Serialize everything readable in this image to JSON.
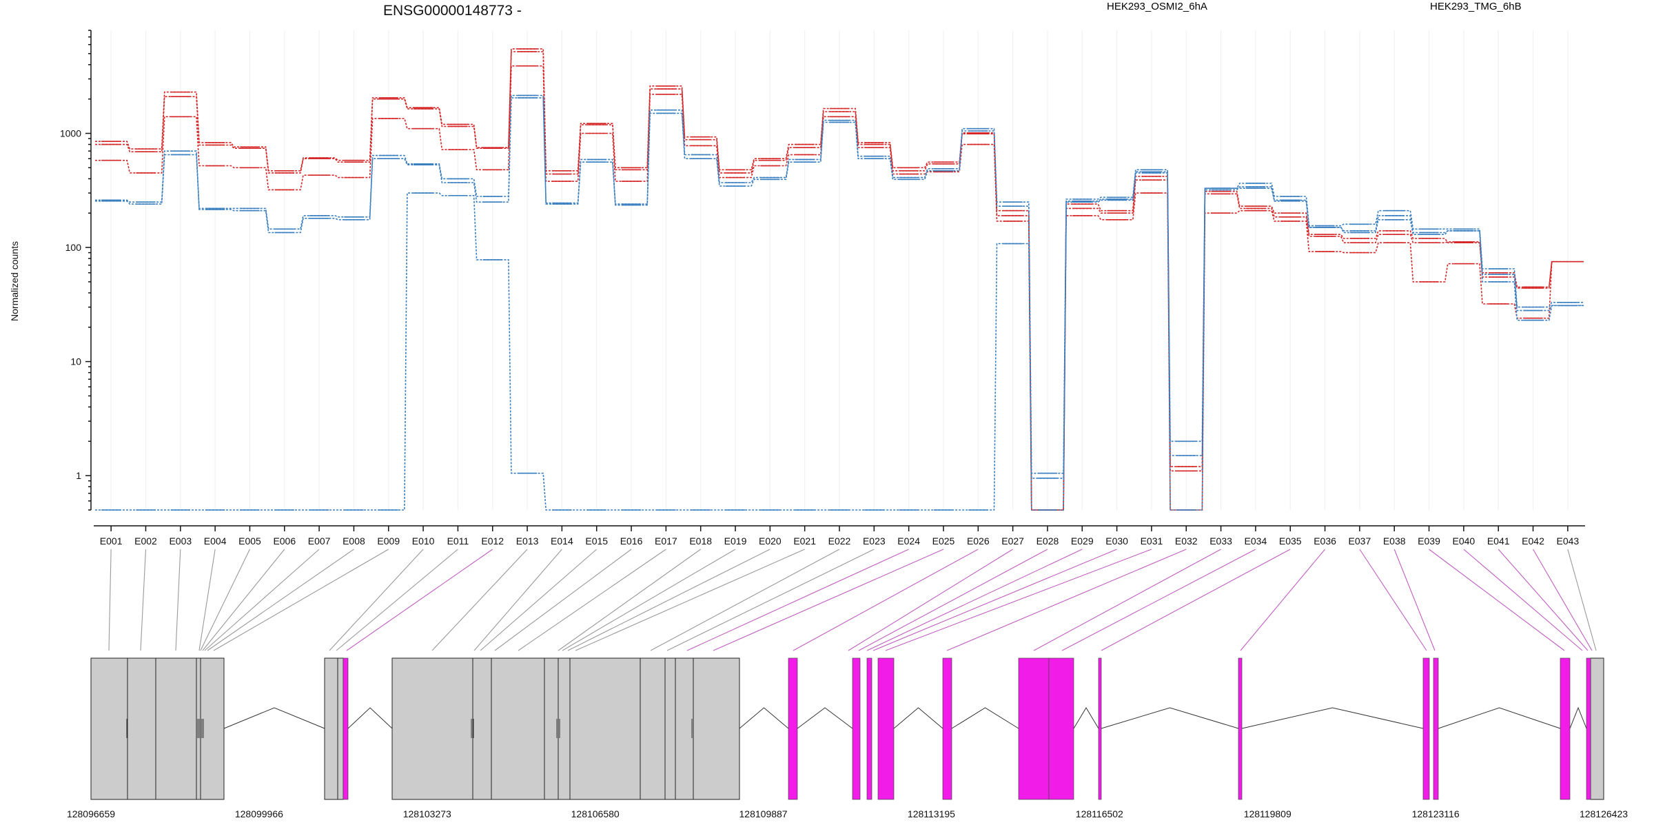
{
  "chart_data": {
    "type": "line",
    "title": "ENSG00000148773 -",
    "ylabel": "Normalized counts",
    "y_scale": "log",
    "ylim": [
      0.5,
      8000
    ],
    "yticks": [
      "1",
      "10",
      "100",
      "1000"
    ],
    "legend": [
      {
        "name": "HEK293_OSMI2_6hA",
        "color": "#d62728"
      },
      {
        "name": "HEK293_TMG_6hB",
        "color": "#3a7fc0"
      }
    ],
    "categories": [
      "E001",
      "E002",
      "E003",
      "E004",
      "E005",
      "E006",
      "E007",
      "E008",
      "E009",
      "E010",
      "E011",
      "E012",
      "E013",
      "E014",
      "E015",
      "E016",
      "E017",
      "E018",
      "E019",
      "E020",
      "E021",
      "E022",
      "E023",
      "E024",
      "E025",
      "E026",
      "E027",
      "E028",
      "E029",
      "E030",
      "E031",
      "E032",
      "E033",
      "E034",
      "E035",
      "E036",
      "E037",
      "E038",
      "E039",
      "E040",
      "E041",
      "E042",
      "E043"
    ],
    "series": [
      {
        "group": 0,
        "color": "#d62728",
        "values": [
          850,
          730,
          2300,
          830,
          760,
          470,
          610,
          580,
          2050,
          1680,
          1200,
          750,
          5500,
          470,
          1220,
          500,
          2600,
          930,
          480,
          600,
          800,
          1650,
          830,
          500,
          560,
          1010,
          210,
          0.5,
          240,
          210,
          420,
          1.2,
          310,
          230,
          200,
          130,
          120,
          140,
          120,
          110,
          60,
          45,
          75
        ]
      },
      {
        "group": 0,
        "color": "#d62728",
        "values": [
          800,
          690,
          2100,
          790,
          740,
          450,
          600,
          560,
          2000,
          1640,
          1150,
          740,
          5200,
          440,
          1190,
          480,
          2450,
          880,
          450,
          580,
          750,
          1550,
          800,
          470,
          540,
          990,
          190,
          0.5,
          220,
          200,
          390,
          1.1,
          295,
          220,
          185,
          125,
          110,
          130,
          110,
          112,
          55,
          44,
          75
        ]
      },
      {
        "group": 0,
        "color": "#d62728",
        "values": [
          580,
          450,
          1400,
          520,
          500,
          320,
          430,
          410,
          1350,
          1100,
          720,
          480,
          3900,
          380,
          1000,
          380,
          2200,
          780,
          410,
          520,
          650,
          1400,
          750,
          440,
          460,
          800,
          170,
          0.5,
          190,
          175,
          300,
          0.5,
          200,
          210,
          170,
          92,
          90,
          110,
          50,
          72,
          32,
          24,
          75
        ]
      },
      {
        "group": 1,
        "color": "#3a7fc0",
        "values": [
          260,
          250,
          700,
          220,
          220,
          145,
          190,
          185,
          640,
          540,
          400,
          280,
          2150,
          245,
          590,
          240,
          1600,
          650,
          370,
          410,
          590,
          1300,
          630,
          410,
          490,
          1100,
          250,
          1.05,
          265,
          275,
          480,
          2.0,
          330,
          365,
          280,
          155,
          160,
          210,
          145,
          145,
          65,
          30,
          33
        ]
      },
      {
        "group": 1,
        "color": "#3a7fc0",
        "values": [
          255,
          240,
          650,
          215,
          210,
          135,
          180,
          175,
          600,
          530,
          370,
          250,
          2050,
          240,
          560,
          235,
          1500,
          600,
          345,
          395,
          560,
          1250,
          600,
          395,
          470,
          1050,
          230,
          0.95,
          255,
          265,
          460,
          1.5,
          320,
          340,
          260,
          150,
          140,
          190,
          135,
          140,
          58,
          28,
          31
        ]
      },
      {
        "group": 1,
        "color": "#3a7fc0",
        "values": [
          0.5,
          0.5,
          0.5,
          0.5,
          0.5,
          0.5,
          0.5,
          0.5,
          0.5,
          300,
          285,
          78,
          1.05,
          0.5,
          0.5,
          0.5,
          0.5,
          0.5,
          0.5,
          0.5,
          0.5,
          0.5,
          0.5,
          0.5,
          0.5,
          0.5,
          108,
          0.5,
          250,
          260,
          450,
          0.5,
          330,
          330,
          255,
          150,
          135,
          175,
          130,
          140,
          50,
          23,
          31
        ]
      }
    ],
    "gene_coordinates": [
      "128096659",
      "128099966",
      "128103273",
      "128106580",
      "128109887",
      "128113195",
      "128116502",
      "128119809",
      "128123116",
      "128126423"
    ],
    "genome_range": [
      128096659,
      128126423
    ],
    "exon_colors": {
      "gray": "#cccccc",
      "magenta": "#f21ce8"
    }
  }
}
